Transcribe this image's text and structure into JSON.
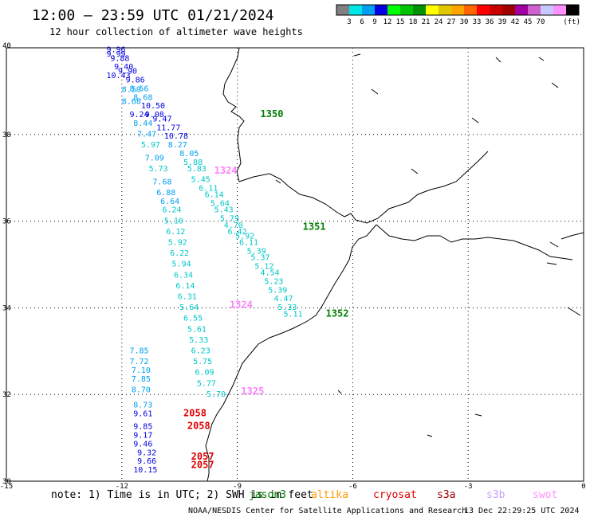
{
  "header": {
    "title": "12:00 – 23:59 UTC 01/21/2024",
    "subtitle": "12 hour collection of altimeter wave heights"
  },
  "colorbar": {
    "colors": [
      "#808080",
      "#00e5e5",
      "#00a0f0",
      "#0000e0",
      "#00ff00",
      "#00c400",
      "#009000",
      "#ffff00",
      "#e0c800",
      "#ffa500",
      "#ff6600",
      "#ff0000",
      "#c80000",
      "#a00000",
      "#a000a0",
      "#d060d0",
      "#c8c8ff",
      "#ff90ff",
      "#000000"
    ],
    "labels": [
      "3",
      "6",
      "9",
      "12",
      "15",
      "18",
      "21",
      "24",
      "27",
      "30",
      "33",
      "36",
      "39",
      "42",
      "45",
      "70"
    ],
    "unit": "(ft)"
  },
  "map": {
    "lon_range": [
      -15,
      0
    ],
    "lat_range": [
      30,
      40
    ],
    "lon_ticks": [
      "-15",
      "-12",
      "-9",
      "-6",
      "-3",
      "0"
    ],
    "lat_ticks": [
      "40",
      "38",
      "36",
      "34",
      "32",
      "30"
    ],
    "grid": "dotted"
  },
  "passes": [
    {
      "label": "1350",
      "color": "#008000",
      "lon": -8.4,
      "lat": 38.4
    },
    {
      "label": "1351",
      "color": "#008000",
      "lon": -7.3,
      "lat": 35.8
    },
    {
      "label": "1352",
      "color": "#008000",
      "lon": -6.7,
      "lat": 33.8
    },
    {
      "label": "1324",
      "color": "#ff80ff",
      "lon": -9.6,
      "lat": 37.1
    },
    {
      "label": "1324",
      "color": "#ff80ff",
      "lon": -9.2,
      "lat": 34.0
    },
    {
      "label": "1325",
      "color": "#ff80ff",
      "lon": -8.9,
      "lat": 32.0
    },
    {
      "label": "2058",
      "color": "#e00000",
      "lon": -10.4,
      "lat": 31.5
    },
    {
      "label": "2058",
      "color": "#e00000",
      "lon": -10.3,
      "lat": 31.2
    },
    {
      "label": "2057",
      "color": "#e00000",
      "lon": -10.2,
      "lat": 30.5
    },
    {
      "label": "2057",
      "color": "#e00000",
      "lon": -10.2,
      "lat": 30.3
    }
  ],
  "observations": [
    {
      "v": "9.96",
      "lon": -12.4,
      "lat": 39.9,
      "c": "#0000e0"
    },
    {
      "v": "9.99",
      "lon": -12.4,
      "lat": 39.8,
      "c": "#0000e0"
    },
    {
      "v": "9.88",
      "lon": -12.3,
      "lat": 39.7,
      "c": "#0000e0"
    },
    {
      "v": "9.40",
      "lon": -12.2,
      "lat": 39.5,
      "c": "#0000e0"
    },
    {
      "v": "9.90",
      "lon": -12.1,
      "lat": 39.4,
      "c": "#0000e0"
    },
    {
      "v": "10.43",
      "lon": -12.4,
      "lat": 39.3,
      "c": "#0000e0"
    },
    {
      "v": "9.86",
      "lon": -11.9,
      "lat": 39.2,
      "c": "#0000e0"
    },
    {
      "v": "8.56",
      "lon": -11.8,
      "lat": 39.0,
      "c": "#00a0f0"
    },
    {
      "v": "8.59",
      "lon": -12.0,
      "lat": 38.98,
      "c": "#00a0f0"
    },
    {
      "v": "8.68",
      "lon": -11.7,
      "lat": 38.8,
      "c": "#00a0f0"
    },
    {
      "v": "8.68",
      "lon": -12.0,
      "lat": 38.7,
      "c": "#00a0f0"
    },
    {
      "v": "10.50",
      "lon": -11.5,
      "lat": 38.6,
      "c": "#0000e0"
    },
    {
      "v": "9.24",
      "lon": -11.8,
      "lat": 38.4,
      "c": "#0000e0"
    },
    {
      "v": "9.08",
      "lon": -11.4,
      "lat": 38.4,
      "c": "#0000e0"
    },
    {
      "v": "9.47",
      "lon": -11.2,
      "lat": 38.3,
      "c": "#0000e0"
    },
    {
      "v": "8.44",
      "lon": -11.7,
      "lat": 38.2,
      "c": "#00a0f0"
    },
    {
      "v": "11.77",
      "lon": -11.1,
      "lat": 38.1,
      "c": "#0000e0"
    },
    {
      "v": "7.47",
      "lon": -11.6,
      "lat": 37.95,
      "c": "#00a0f0"
    },
    {
      "v": "10.78",
      "lon": -10.9,
      "lat": 37.9,
      "c": "#0000e0"
    },
    {
      "v": "5.97",
      "lon": -11.5,
      "lat": 37.7,
      "c": "#00c8c8"
    },
    {
      "v": "8.27",
      "lon": -10.8,
      "lat": 37.7,
      "c": "#00a0f0"
    },
    {
      "v": "8.05",
      "lon": -10.5,
      "lat": 37.5,
      "c": "#00a0f0"
    },
    {
      "v": "7.09",
      "lon": -11.4,
      "lat": 37.4,
      "c": "#00a0f0"
    },
    {
      "v": "5.88",
      "lon": -10.4,
      "lat": 37.3,
      "c": "#00c8c8"
    },
    {
      "v": "5.73",
      "lon": -11.3,
      "lat": 37.15,
      "c": "#00c8c8"
    },
    {
      "v": "5.83",
      "lon": -10.3,
      "lat": 37.15,
      "c": "#00c8c8"
    },
    {
      "v": "5.45",
      "lon": -10.2,
      "lat": 36.9,
      "c": "#00c8c8"
    },
    {
      "v": "7.68",
      "lon": -11.2,
      "lat": 36.85,
      "c": "#00a0f0"
    },
    {
      "v": "6.11",
      "lon": -10.0,
      "lat": 36.7,
      "c": "#00c8c8"
    },
    {
      "v": "6.88",
      "lon": -11.1,
      "lat": 36.6,
      "c": "#00a0f0"
    },
    {
      "v": "6.14",
      "lon": -9.85,
      "lat": 36.55,
      "c": "#00c8c8"
    },
    {
      "v": "6.64",
      "lon": -11.0,
      "lat": 36.4,
      "c": "#00a0f0"
    },
    {
      "v": "5.64",
      "lon": -9.7,
      "lat": 36.35,
      "c": "#00c8c8"
    },
    {
      "v": "6.24",
      "lon": -10.95,
      "lat": 36.2,
      "c": "#00c8c8"
    },
    {
      "v": "5.43",
      "lon": -9.6,
      "lat": 36.2,
      "c": "#00c8c8"
    },
    {
      "v": "5.79",
      "lon": -9.45,
      "lat": 36.0,
      "c": "#00c8c8"
    },
    {
      "v": "5.10",
      "lon": -10.9,
      "lat": 35.95,
      "c": "#00c8c8"
    },
    {
      "v": "4.70",
      "lon": -9.35,
      "lat": 35.85,
      "c": "#00c8c8"
    },
    {
      "v": "6.12",
      "lon": -10.85,
      "lat": 35.7,
      "c": "#00c8c8"
    },
    {
      "v": "6.42",
      "lon": -9.25,
      "lat": 35.7,
      "c": "#00c8c8"
    },
    {
      "v": "5.92",
      "lon": -9.05,
      "lat": 35.6,
      "c": "#00c8c8"
    },
    {
      "v": "5.92",
      "lon": -10.8,
      "lat": 35.45,
      "c": "#00c8c8"
    },
    {
      "v": "6.11",
      "lon": -8.95,
      "lat": 35.45,
      "c": "#00c8c8"
    },
    {
      "v": "6.22",
      "lon": -10.75,
      "lat": 35.2,
      "c": "#00c8c8"
    },
    {
      "v": "5.39",
      "lon": -8.75,
      "lat": 35.25,
      "c": "#00c8c8"
    },
    {
      "v": "5.37",
      "lon": -8.65,
      "lat": 35.1,
      "c": "#00c8c8"
    },
    {
      "v": "5.94",
      "lon": -10.7,
      "lat": 34.95,
      "c": "#00c8c8"
    },
    {
      "v": "5.12",
      "lon": -8.55,
      "lat": 34.9,
      "c": "#00c8c8"
    },
    {
      "v": "6.34",
      "lon": -10.65,
      "lat": 34.7,
      "c": "#00c8c8"
    },
    {
      "v": "4.54",
      "lon": -8.4,
      "lat": 34.75,
      "c": "#00c8c8"
    },
    {
      "v": "5.23",
      "lon": -8.3,
      "lat": 34.55,
      "c": "#00c8c8"
    },
    {
      "v": "6.14",
      "lon": -10.6,
      "lat": 34.45,
      "c": "#00c8c8"
    },
    {
      "v": "5.39",
      "lon": -8.2,
      "lat": 34.35,
      "c": "#00c8c8"
    },
    {
      "v": "6.31",
      "lon": -10.55,
      "lat": 34.2,
      "c": "#00c8c8"
    },
    {
      "v": "4.47",
      "lon": -8.05,
      "lat": 34.15,
      "c": "#00c8c8"
    },
    {
      "v": "5.64",
      "lon": -10.5,
      "lat": 33.95,
      "c": "#00c8c8"
    },
    {
      "v": "5.33",
      "lon": -7.95,
      "lat": 33.95,
      "c": "#00c8c8"
    },
    {
      "v": "5.11",
      "lon": -7.8,
      "lat": 33.8,
      "c": "#00c8c8"
    },
    {
      "v": "6.55",
      "lon": -10.4,
      "lat": 33.7,
      "c": "#00c8c8"
    },
    {
      "v": "5.61",
      "lon": -10.3,
      "lat": 33.45,
      "c": "#00c8c8"
    },
    {
      "v": "5.33",
      "lon": -10.25,
      "lat": 33.2,
      "c": "#00c8c8"
    },
    {
      "v": "7.85",
      "lon": -11.8,
      "lat": 32.95,
      "c": "#00a0f0"
    },
    {
      "v": "6.23",
      "lon": -10.2,
      "lat": 32.95,
      "c": "#00c8c8"
    },
    {
      "v": "7.72",
      "lon": -11.8,
      "lat": 32.7,
      "c": "#00a0f0"
    },
    {
      "v": "5.75",
      "lon": -10.15,
      "lat": 32.7,
      "c": "#00c8c8"
    },
    {
      "v": "7.10",
      "lon": -11.75,
      "lat": 32.5,
      "c": "#00a0f0"
    },
    {
      "v": "6.09",
      "lon": -10.1,
      "lat": 32.45,
      "c": "#00c8c8"
    },
    {
      "v": "7.85",
      "lon": -11.75,
      "lat": 32.3,
      "c": "#00a0f0"
    },
    {
      "v": "5.77",
      "lon": -10.05,
      "lat": 32.2,
      "c": "#00c8c8"
    },
    {
      "v": "8.70",
      "lon": -11.75,
      "lat": 32.05,
      "c": "#00a0f0"
    },
    {
      "v": "5.70",
      "lon": -9.8,
      "lat": 31.95,
      "c": "#00c8c8"
    },
    {
      "v": "8.73",
      "lon": -11.7,
      "lat": 31.7,
      "c": "#00a0f0"
    },
    {
      "v": "9.61",
      "lon": -11.7,
      "lat": 31.5,
      "c": "#0000e0"
    },
    {
      "v": "9.85",
      "lon": -11.7,
      "lat": 31.2,
      "c": "#0000e0"
    },
    {
      "v": "9.17",
      "lon": -11.7,
      "lat": 31.0,
      "c": "#0000e0"
    },
    {
      "v": "9.46",
      "lon": -11.7,
      "lat": 30.8,
      "c": "#0000e0"
    },
    {
      "v": "9.32",
      "lon": -11.6,
      "lat": 30.6,
      "c": "#0000e0"
    },
    {
      "v": "9.66",
      "lon": -11.6,
      "lat": 30.4,
      "c": "#0000e0"
    },
    {
      "v": "10.15",
      "lon": -11.7,
      "lat": 30.2,
      "c": "#0000e0"
    }
  ],
  "footer": {
    "note": "note: 1) Time is in UTC; 2) SWH is in feet",
    "satellites": [
      {
        "name": "jason3",
        "color": "#008000"
      },
      {
        "name": "altika",
        "color": "#ff9900"
      },
      {
        "name": "cryosat",
        "color": "#e00000"
      },
      {
        "name": "s3a",
        "color": "#a00000"
      },
      {
        "name": "s3b",
        "color": "#c8a0ff"
      },
      {
        "name": "swot",
        "color": "#ff90ff"
      }
    ],
    "credit": "NOAA/NESDIS Center for Satellite Applications and Research",
    "timestamp": "13 Dec 22:29:25 UTC 2024"
  }
}
